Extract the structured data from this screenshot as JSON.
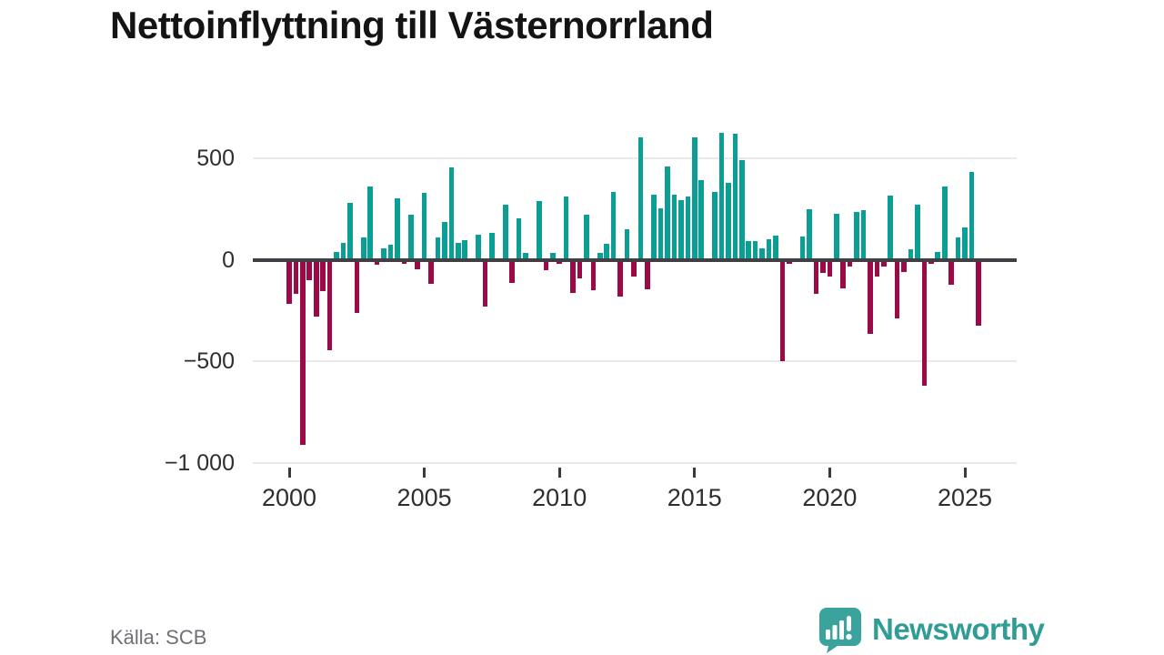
{
  "title": "Nettoinflyttning till Västernorrland",
  "source": "Källa: SCB",
  "branding": {
    "logo_text": "Newsworthy",
    "logo_color": "#3aa39b",
    "wordmark_color": "#2f9d95"
  },
  "colors": {
    "positive_bar": "#0a9e94",
    "negative_bar": "#9b0a46",
    "gridline": "#e9e9e9",
    "zero_line": "#3f3f44",
    "axis_text": "#2e2e2e",
    "source_text": "#6f6f78"
  },
  "chart_data": {
    "type": "bar",
    "title": "Nettoinflyttning till Västernorrland",
    "xlabel": "",
    "ylabel": "",
    "start_period": "2000-Q1",
    "frequency": "quarterly",
    "ylim": [
      -1000,
      650
    ],
    "grid": "horizontal",
    "x_ticks": [
      "2000",
      "2005",
      "2010",
      "2015",
      "2020",
      "2025"
    ],
    "y_ticks": [
      {
        "value": 500,
        "label": "500"
      },
      {
        "value": 0,
        "label": "0"
      },
      {
        "value": -500,
        "label": "−500"
      },
      {
        "value": -1000,
        "label": "−1 000"
      }
    ],
    "values": [
      -215,
      -170,
      -910,
      -100,
      -280,
      -155,
      -445,
      40,
      85,
      280,
      -260,
      110,
      360,
      -25,
      55,
      75,
      300,
      -20,
      220,
      -45,
      330,
      -120,
      110,
      185,
      455,
      85,
      95,
      5,
      125,
      -230,
      130,
      -5,
      270,
      -115,
      205,
      35,
      -10,
      290,
      -50,
      35,
      -20,
      310,
      -165,
      -90,
      220,
      -150,
      35,
      80,
      335,
      -180,
      150,
      -85,
      600,
      -145,
      320,
      255,
      460,
      320,
      295,
      310,
      600,
      390,
      5,
      335,
      625,
      380,
      620,
      490,
      90,
      90,
      55,
      100,
      120,
      -500,
      -20,
      -5,
      115,
      250,
      -170,
      -65,
      -85,
      225,
      -140,
      -35,
      235,
      245,
      -365,
      -85,
      -35,
      315,
      -290,
      -60,
      50,
      270,
      -620,
      -20,
      40,
      360,
      -125,
      110,
      160,
      430,
      -325
    ]
  }
}
